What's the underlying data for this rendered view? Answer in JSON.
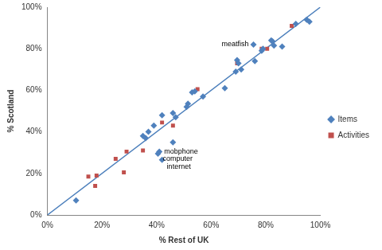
{
  "chart_data": {
    "type": "scatter",
    "x_label": "% Rest of UK",
    "y_label": "% Scotland",
    "xlim": [
      0,
      100
    ],
    "ylim": [
      0,
      100
    ],
    "xticks": [
      {
        "value": 0,
        "label": "0%"
      },
      {
        "value": 20,
        "label": "20%"
      },
      {
        "value": 40,
        "label": "40%"
      },
      {
        "value": 60,
        "label": "60%"
      },
      {
        "value": 80,
        "label": "80%"
      },
      {
        "value": 100,
        "label": "100%"
      }
    ],
    "yticks": [
      {
        "value": 0,
        "label": "0%"
      },
      {
        "value": 20,
        "label": "20%"
      },
      {
        "value": 40,
        "label": "40%"
      },
      {
        "value": 60,
        "label": "60%"
      },
      {
        "value": 80,
        "label": "80%"
      },
      {
        "value": 100,
        "label": "100%"
      }
    ],
    "grid": false,
    "legend": "right",
    "series": [
      {
        "name": "Items",
        "color": "#4F81BD",
        "marker": "diamond",
        "x": [
          10.5,
          35,
          36,
          37,
          39,
          41,
          40.5,
          42,
          42,
          46,
          46,
          47,
          51,
          51.5,
          53,
          54,
          57,
          65,
          69,
          69.5,
          70,
          71,
          75.5,
          76,
          78.5,
          79,
          82,
          82.5,
          83,
          86,
          91,
          95,
          96
        ],
        "values": [
          7,
          38,
          37,
          40,
          43,
          30.5,
          29.5,
          26.5,
          48,
          49,
          35,
          47,
          52,
          53.5,
          59,
          59.5,
          57,
          61,
          69,
          74.5,
          73,
          70,
          82,
          74,
          79,
          80,
          84,
          83.5,
          81.5,
          81,
          92,
          94,
          93
        ]
      },
      {
        "name": "Activities",
        "color": "#C0504D",
        "marker": "square",
        "x": [
          15,
          17.5,
          18,
          25,
          28,
          29,
          35,
          42,
          46,
          55,
          69.5,
          78.5,
          80.5,
          89.5
        ],
        "values": [
          18.5,
          14,
          19,
          27,
          20.5,
          30.5,
          31,
          44.5,
          43,
          60.5,
          73,
          80,
          80,
          91
        ]
      }
    ],
    "reference_line": {
      "x": [
        0,
        100
      ],
      "y": [
        0,
        100
      ],
      "color": "#4A7EBB"
    },
    "annotations": [
      {
        "text": "meatfish",
        "x": 75.5,
        "y": 82
      },
      {
        "text": "mobphone",
        "x": 41,
        "y": 30.5
      },
      {
        "text": "computer",
        "x": 40.5,
        "y": 29.5
      },
      {
        "text": "internet",
        "x": 42,
        "y": 26.5
      }
    ]
  }
}
